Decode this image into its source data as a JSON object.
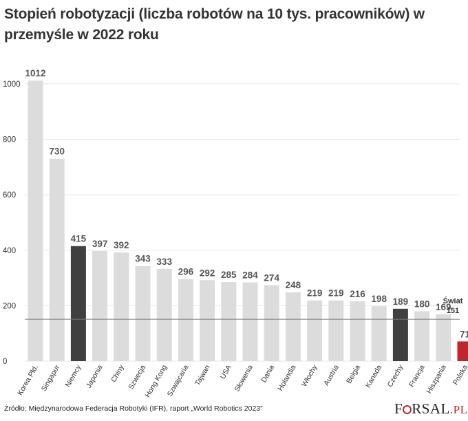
{
  "title": "Stopień robotyzacji (liczba robotów na 10 tys. pracowników) w przemyśle w 2022 roku",
  "source": "Źródło: Międzynarodowa Federacja Robotyki (IFR), raport „World Robotics 2023”",
  "logo": {
    "text_a": "F",
    "text_b": "RSAL",
    "text_c": ".PL"
  },
  "colors": {
    "default": "#dcdcdc",
    "highlight_dark": "#404040",
    "highlight_red": "#c0262c",
    "grid": "#e8e8e8",
    "ref_line": "#7a7a7a"
  },
  "chart_data": {
    "type": "bar",
    "categories": [
      "Korea Płd.",
      "Singapur",
      "Niemcy",
      "Japonia",
      "Chiny",
      "Szwecja",
      "Hong Kong",
      "Szwajcaria",
      "Tajwan",
      "USA",
      "Słowenia",
      "Dania",
      "Holandia",
      "Włochy",
      "Austria",
      "Belgia",
      "Kanada",
      "Czechy",
      "Francja",
      "Hiszpania",
      "Polska"
    ],
    "values": [
      1012,
      730,
      415,
      397,
      392,
      343,
      333,
      296,
      292,
      285,
      284,
      274,
      248,
      219,
      219,
      216,
      198,
      189,
      180,
      169,
      71
    ],
    "highlight": {
      "Niemcy": "dark",
      "Czechy": "dark",
      "Polska": "red"
    },
    "ylim": [
      0,
      1050
    ],
    "yticks": [
      0,
      200,
      400,
      600,
      800,
      1000
    ],
    "reference_line": {
      "label": "Świat",
      "value": 151
    },
    "grid": true
  }
}
